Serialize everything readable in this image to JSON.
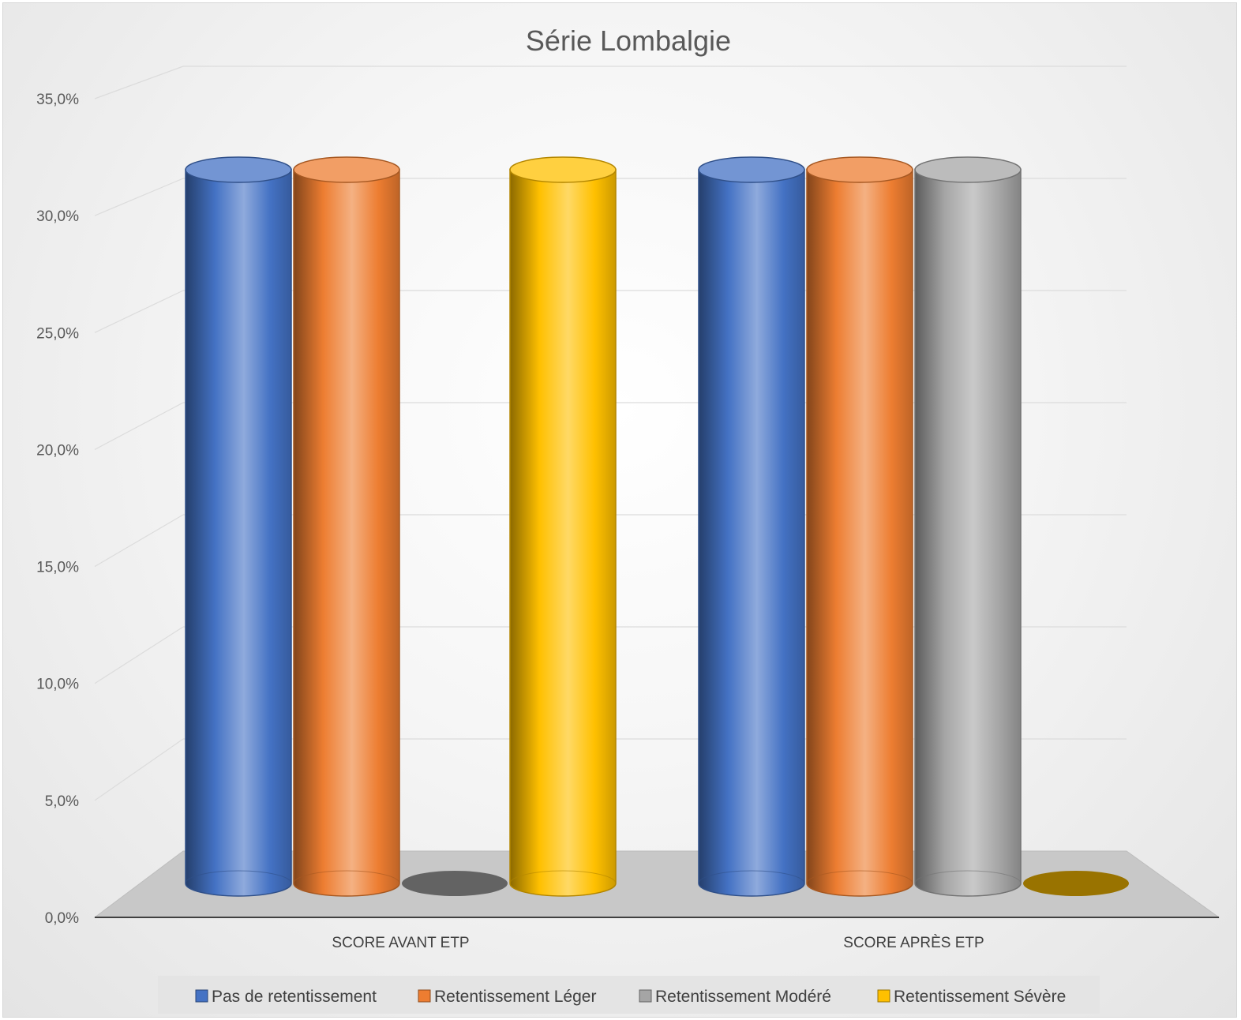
{
  "chart_data": {
    "type": "bar",
    "title": "Série Lombalgie",
    "categories": [
      "SCORE AVANT ETP",
      "SCORE APRÈS ETP"
    ],
    "series": [
      {
        "name": "Pas de retentissement",
        "values": [
          31.0,
          31.0
        ],
        "color": "#4472C4"
      },
      {
        "name": "Retentissement Léger",
        "values": [
          31.0,
          31.0
        ],
        "color": "#ED7D31"
      },
      {
        "name": "Retentissement Modéré",
        "values": [
          0.0,
          31.0
        ],
        "color": "#A5A5A5"
      },
      {
        "name": "Retentissement Sévère",
        "values": [
          31.0,
          0.0
        ],
        "color": "#FFC000"
      }
    ],
    "yticks": [
      "0,0%",
      "5,0%",
      "10,0%",
      "15,0%",
      "20,0%",
      "25,0%",
      "30,0%",
      "35,0%"
    ],
    "ylim": [
      0,
      35
    ],
    "xlabel": "",
    "ylabel": "",
    "grid": true,
    "legend": "bottom",
    "style": "3d-cylinder"
  }
}
